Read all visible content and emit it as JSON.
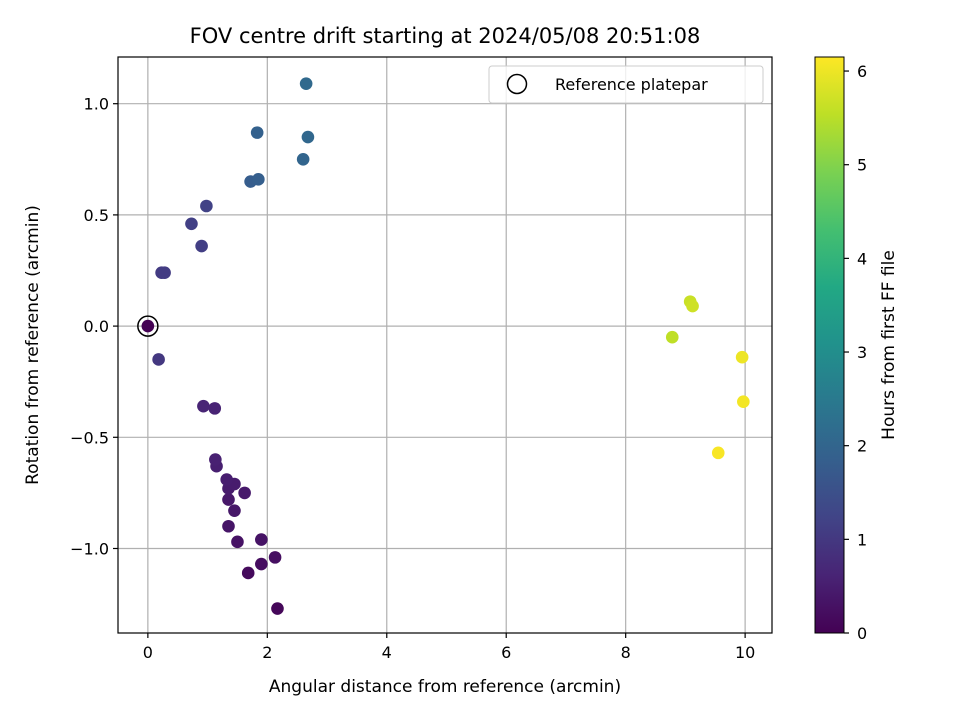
{
  "chart_data": {
    "type": "scatter",
    "title": "FOV centre drift starting at 2024/05/08 20:51:08",
    "xlabel": "Angular distance from reference (arcmin)",
    "ylabel": "Rotation from reference (arcmin)",
    "xlim": [
      -0.5,
      10.45
    ],
    "ylim": [
      -1.38,
      1.21
    ],
    "xticks": [
      0,
      2,
      4,
      6,
      8,
      10
    ],
    "xtick_labels": [
      "0",
      "2",
      "4",
      "6",
      "8",
      "10"
    ],
    "yticks": [
      -1.0,
      -0.5,
      0.0,
      0.5,
      1.0
    ],
    "ytick_labels": [
      "−1.0",
      "−0.5",
      "0.0",
      "0.5",
      "1.0"
    ],
    "grid": true,
    "colormap": "viridis",
    "colorbar": {
      "label": "Hours from first FF file",
      "range": [
        0,
        6.15
      ],
      "ticks": [
        0,
        1,
        2,
        3,
        4,
        5,
        6
      ],
      "tick_labels": [
        "0",
        "1",
        "2",
        "3",
        "4",
        "5",
        "6"
      ]
    },
    "legend": {
      "placement": "upper right",
      "entries": [
        "Reference platepar"
      ]
    },
    "reference_point": {
      "x": 0.0,
      "y": 0.0
    },
    "points": [
      {
        "x": 0.0,
        "y": 0.0,
        "c": 0.0
      },
      {
        "x": 2.17,
        "y": -1.27,
        "c": 0.1
      },
      {
        "x": 1.68,
        "y": -1.11,
        "c": 0.15
      },
      {
        "x": 1.9,
        "y": -1.07,
        "c": 0.2
      },
      {
        "x": 2.13,
        "y": -1.04,
        "c": 0.25
      },
      {
        "x": 1.5,
        "y": -0.97,
        "c": 0.3
      },
      {
        "x": 1.9,
        "y": -0.96,
        "c": 0.32
      },
      {
        "x": 1.35,
        "y": -0.9,
        "c": 0.35
      },
      {
        "x": 1.45,
        "y": -0.83,
        "c": 0.38
      },
      {
        "x": 1.35,
        "y": -0.78,
        "c": 0.4
      },
      {
        "x": 1.62,
        "y": -0.75,
        "c": 0.42
      },
      {
        "x": 1.35,
        "y": -0.73,
        "c": 0.45
      },
      {
        "x": 1.45,
        "y": -0.71,
        "c": 0.47
      },
      {
        "x": 1.32,
        "y": -0.69,
        "c": 0.5
      },
      {
        "x": 1.15,
        "y": -0.63,
        "c": 0.53
      },
      {
        "x": 1.13,
        "y": -0.6,
        "c": 0.56
      },
      {
        "x": 1.12,
        "y": -0.37,
        "c": 0.6
      },
      {
        "x": 0.93,
        "y": -0.36,
        "c": 0.63
      },
      {
        "x": 0.18,
        "y": -0.15,
        "c": 1.0
      },
      {
        "x": 0.23,
        "y": 0.24,
        "c": 1.05
      },
      {
        "x": 0.28,
        "y": 0.24,
        "c": 1.08
      },
      {
        "x": 0.9,
        "y": 0.36,
        "c": 1.12
      },
      {
        "x": 0.73,
        "y": 0.46,
        "c": 1.15
      },
      {
        "x": 0.98,
        "y": 0.54,
        "c": 1.2
      },
      {
        "x": 1.72,
        "y": 0.65,
        "c": 1.8
      },
      {
        "x": 1.85,
        "y": 0.66,
        "c": 1.85
      },
      {
        "x": 2.6,
        "y": 0.75,
        "c": 2.0
      },
      {
        "x": 1.83,
        "y": 0.87,
        "c": 1.9
      },
      {
        "x": 2.68,
        "y": 0.85,
        "c": 2.05
      },
      {
        "x": 2.65,
        "y": 1.09,
        "c": 2.1
      },
      {
        "x": 8.78,
        "y": -0.05,
        "c": 5.55
      },
      {
        "x": 9.08,
        "y": 0.11,
        "c": 5.65
      },
      {
        "x": 9.12,
        "y": 0.09,
        "c": 5.7
      },
      {
        "x": 9.95,
        "y": -0.14,
        "c": 6.0
      },
      {
        "x": 9.97,
        "y": -0.34,
        "c": 6.05
      },
      {
        "x": 9.55,
        "y": -0.57,
        "c": 6.1
      }
    ]
  }
}
